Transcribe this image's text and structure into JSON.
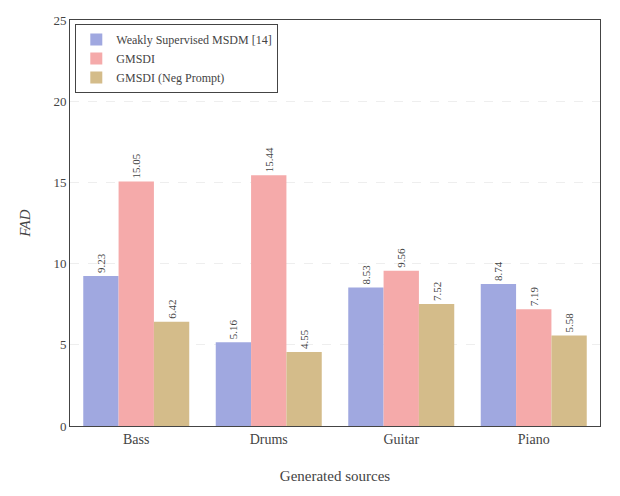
{
  "chart_data": {
    "type": "bar",
    "categories": [
      "Bass",
      "Drums",
      "Guitar",
      "Piano"
    ],
    "series": [
      {
        "name": "Weakly Supervised MSDM [14]",
        "color": "#a0a8e0",
        "values": [
          9.23,
          5.16,
          8.53,
          8.74
        ]
      },
      {
        "name": "GMSDI",
        "color": "#f5aaaa",
        "values": [
          15.05,
          15.44,
          9.56,
          7.19
        ]
      },
      {
        "name": "GMSDI (Neg Prompt)",
        "color": "#d4bc8a",
        "values": [
          6.42,
          4.55,
          7.52,
          5.58
        ]
      }
    ],
    "xlabel": "Generated sources",
    "ylabel": "FAD",
    "ylim": [
      0,
      25
    ],
    "yticks": [
      0,
      5,
      10,
      15,
      20,
      25
    ],
    "grid": true,
    "legend": "upper left",
    "data_labels": true
  }
}
